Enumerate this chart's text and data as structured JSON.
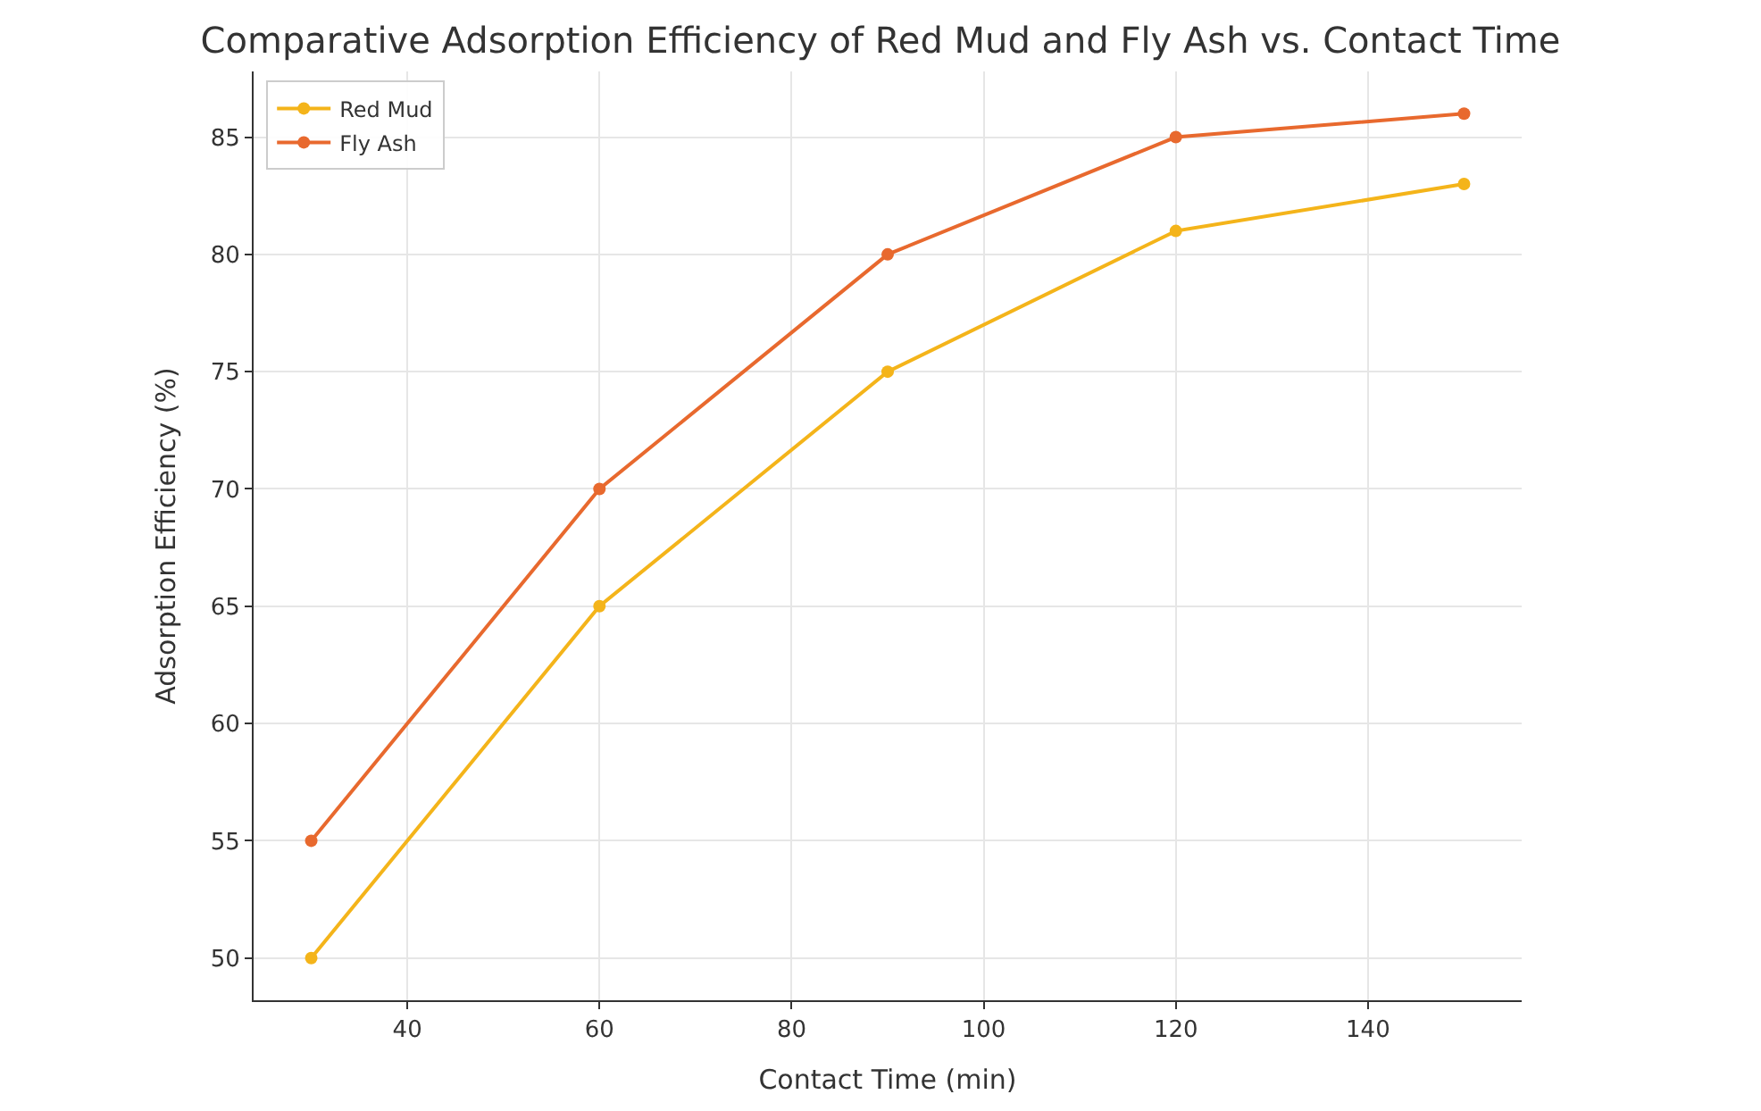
{
  "chart_data": {
    "type": "line",
    "title": "Comparative Adsorption Efficiency of Red Mud and Fly Ash vs. Contact Time",
    "xlabel": "Contact Time (min)",
    "ylabel": "Adsorption Efficiency (%)",
    "x": [
      30,
      60,
      90,
      120,
      150
    ],
    "series": [
      {
        "name": "Red Mud",
        "color": "#f4b41a",
        "values": [
          50,
          65,
          75,
          81,
          83
        ]
      },
      {
        "name": "Fly Ash",
        "color": "#e8692e",
        "values": [
          55,
          70,
          80,
          85,
          86
        ]
      }
    ],
    "xlim": [
      24,
      156
    ],
    "xticks": [
      40,
      60,
      80,
      100,
      120,
      140
    ],
    "ylim": [
      48.2,
      87.8
    ],
    "yticks": [
      50,
      55,
      60,
      65,
      70,
      75,
      80,
      85
    ],
    "grid": true,
    "legend": "top left",
    "marker": "circle",
    "line_style": "solid"
  }
}
